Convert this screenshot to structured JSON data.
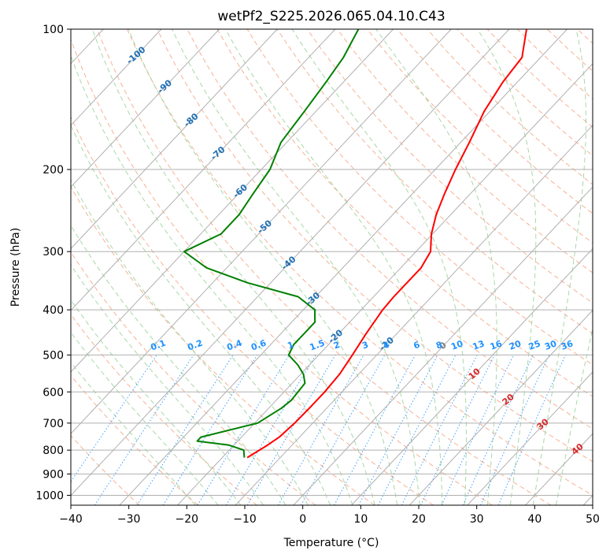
{
  "chart_data": {
    "type": "line",
    "title": "wetPf2_S225.2026.065.04.10.C43",
    "xlabel": "Temperature (°C)",
    "ylabel": "Pressure (hPa)",
    "xlim": [
      -40,
      50
    ],
    "ylim": [
      1050,
      100
    ],
    "yscale": "log",
    "x_ticks": [
      "−40",
      "−30",
      "−20",
      "−10",
      "0",
      "10",
      "20",
      "30",
      "40",
      "50"
    ],
    "y_ticks": [
      "100",
      "200",
      "300",
      "400",
      "500",
      "600",
      "700",
      "800",
      "900",
      "1000"
    ],
    "grid": true,
    "colors": {
      "temperature": "#ff0000",
      "dewpoint": "#008000",
      "isotherm": "#b0b0b0",
      "dry_adiabat": "#f4a582",
      "moist_adiabat": "#9fd49f",
      "mixing_ratio": "#1e90ff",
      "iso_label_blue": "#1f6fb4",
      "iso_label_red": "#d62728",
      "zero_label": "#7f7f7f"
    },
    "series": [
      {
        "key": "temperature",
        "values": [
          [
            100,
            -37
          ],
          [
            115,
            -33.2
          ],
          [
            130,
            -32.5
          ],
          [
            150,
            -31
          ],
          [
            175,
            -28.5
          ],
          [
            200,
            -26.5
          ],
          [
            225,
            -24.5
          ],
          [
            250,
            -22.5
          ],
          [
            275,
            -20.2
          ],
          [
            300,
            -17.5
          ],
          [
            325,
            -16.5
          ],
          [
            350,
            -16.5
          ],
          [
            375,
            -16.5
          ],
          [
            400,
            -16.3
          ],
          [
            450,
            -15.3
          ],
          [
            500,
            -14.2
          ],
          [
            550,
            -13.3
          ],
          [
            600,
            -13.0
          ],
          [
            650,
            -13.0
          ],
          [
            700,
            -13.1
          ],
          [
            750,
            -13.5
          ],
          [
            780,
            -14.2
          ],
          [
            800,
            -14.8
          ],
          [
            830,
            -15.7
          ]
        ]
      },
      {
        "key": "dewpoint",
        "values": [
          [
            100,
            -66
          ],
          [
            115,
            -64
          ],
          [
            130,
            -63
          ],
          [
            150,
            -62
          ],
          [
            175,
            -61
          ],
          [
            200,
            -58.5
          ],
          [
            225,
            -57.5
          ],
          [
            250,
            -56.5
          ],
          [
            275,
            -56.5
          ],
          [
            300,
            -60
          ],
          [
            325,
            -53.5
          ],
          [
            350,
            -44
          ],
          [
            375,
            -33
          ],
          [
            400,
            -28
          ],
          [
            425,
            -26
          ],
          [
            450,
            -26
          ],
          [
            475,
            -26
          ],
          [
            500,
            -25.2
          ],
          [
            525,
            -22
          ],
          [
            550,
            -19.5
          ],
          [
            575,
            -17.8
          ],
          [
            600,
            -17.6
          ],
          [
            625,
            -17.4
          ],
          [
            650,
            -17.8
          ],
          [
            700,
            -19.5
          ],
          [
            750,
            -27
          ],
          [
            765,
            -27
          ],
          [
            780,
            -21
          ],
          [
            800,
            -17.5
          ],
          [
            830,
            -16.2
          ]
        ]
      }
    ],
    "isotherm_labels": [
      "-100",
      "-90",
      "-80",
      "-70",
      "-60",
      "-50",
      "-40",
      "-30",
      "-20",
      "-10",
      "0",
      "10",
      "20",
      "30",
      "40"
    ],
    "mixing_ratio_labels": [
      "0.1",
      "0.2",
      "0.4",
      "0.6",
      "1",
      "1.5",
      "2",
      "3",
      "4",
      "6",
      "8",
      "10",
      "13",
      "16",
      "20",
      "25",
      "30",
      "36"
    ]
  }
}
